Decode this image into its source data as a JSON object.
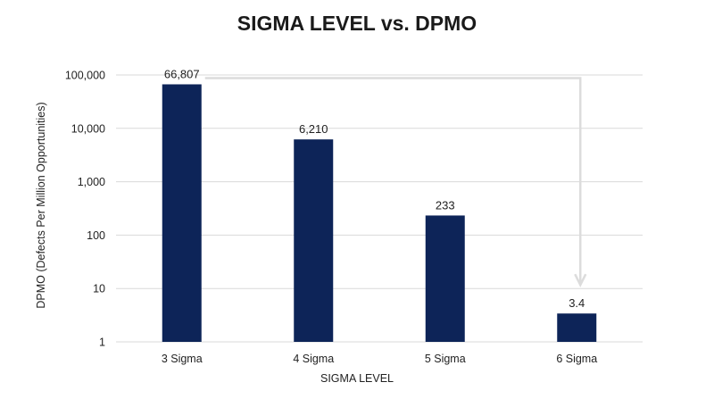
{
  "chart_data": {
    "type": "bar",
    "title": "SIGMA LEVEL vs. DPMO",
    "xlabel": "SIGMA LEVEL",
    "ylabel": "DPMO (Defects Per Million Opportunities)",
    "categories": [
      "3 Sigma",
      "4 Sigma",
      "5 Sigma",
      "6 Sigma"
    ],
    "values": [
      66807,
      6210,
      233,
      3.4
    ],
    "data_labels": [
      "66,807",
      "6,210",
      "233",
      "3.4"
    ],
    "y_scale": "log",
    "ylim": [
      1,
      100000
    ],
    "y_ticks": [
      1,
      10,
      100,
      1000,
      10000,
      100000
    ],
    "y_tick_labels": [
      "1",
      "10",
      "100",
      "1,000",
      "10,000",
      "100,000"
    ],
    "grid": true,
    "legend": "none",
    "colors": {
      "bar": "#0d2458",
      "grid": "#d9d9d9",
      "arrow": "#dcdcdc",
      "text": "#222222"
    },
    "annotations": [
      {
        "type": "arrow",
        "from_category": "3 Sigma",
        "to_category": "6 Sigma"
      }
    ]
  }
}
